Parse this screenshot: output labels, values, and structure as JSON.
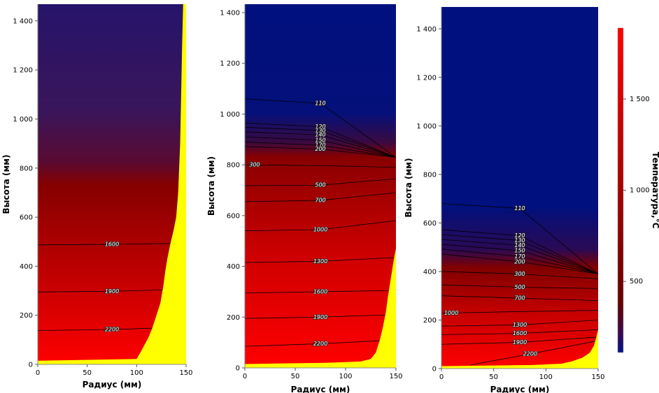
{
  "chart_data": [
    {
      "type": "contour",
      "xlabel": "Радиус (мм)",
      "ylabel": "Высота (мм)",
      "xlim": [
        0,
        150
      ],
      "ylim": [
        0,
        1468
      ],
      "xticks": [
        0,
        50,
        100,
        150
      ],
      "yticks": [
        0,
        200,
        400,
        600,
        800,
        {
          "value": 1000,
          "label": "1 000"
        },
        {
          "value": 1200,
          "label": "1 200"
        },
        {
          "value": 1400,
          "label": "1 400"
        }
      ],
      "contour_color": "#000000",
      "solid_color": "#ffff00",
      "solid_boundary": {
        "x": [
          0,
          100,
          104,
          108,
          112,
          116,
          120,
          124,
          127,
          129,
          131,
          134,
          137,
          140,
          142,
          143,
          144,
          145,
          146,
          147
        ],
        "y": [
          15,
          22,
          50,
          80,
          110,
          150,
          200,
          250,
          320,
          380,
          430,
          490,
          540,
          600,
          700,
          800,
          900,
          1100,
          1300,
          1468
        ]
      },
      "contours": [
        {
          "level": 1600,
          "x": [
            0,
            75,
            150
          ],
          "y": [
            487,
            489,
            494
          ]
        },
        {
          "level": 1900,
          "x": [
            0,
            75,
            150
          ],
          "y": [
            295,
            298,
            306
          ]
        },
        {
          "level": 2200,
          "x": [
            0,
            75,
            150
          ],
          "y": [
            138,
            142,
            152
          ]
        }
      ]
    },
    {
      "type": "contour",
      "xlabel": "Радиус (мм)",
      "ylabel": "Высота (мм)",
      "xlim": [
        0,
        150
      ],
      "ylim": [
        0,
        1433
      ],
      "xticks": [
        0,
        50,
        100,
        150
      ],
      "yticks": [
        0,
        200,
        400,
        600,
        800,
        {
          "value": 1000,
          "label": "1 000"
        },
        {
          "value": 1200,
          "label": "1 200"
        },
        {
          "value": 1400,
          "label": "1 400"
        }
      ],
      "contour_color": "#000000",
      "solid_color": "#ffff00",
      "solid_boundary": {
        "x": [
          0,
          80,
          115,
          125,
          130,
          134,
          137,
          140,
          142,
          144,
          146,
          148,
          150
        ],
        "y": [
          15,
          20,
          25,
          35,
          60,
          110,
          160,
          220,
          280,
          330,
          380,
          430,
          470
        ]
      },
      "contours": [
        {
          "level": 110,
          "x": [
            0,
            75,
            150
          ],
          "y": [
            1060,
            1042,
            830
          ]
        },
        {
          "level": 120,
          "x": [
            0,
            75,
            150
          ],
          "y": [
            965,
            950,
            830
          ]
        },
        {
          "level": 130,
          "x": [
            0,
            75,
            150
          ],
          "y": [
            948,
            935,
            830
          ]
        },
        {
          "level": 140,
          "x": [
            0,
            75,
            150
          ],
          "y": [
            930,
            918,
            830
          ]
        },
        {
          "level": 150,
          "x": [
            0,
            75,
            150
          ],
          "y": [
            910,
            897,
            830
          ]
        },
        {
          "level": 170,
          "x": [
            0,
            75,
            150
          ],
          "y": [
            890,
            877,
            830
          ]
        },
        {
          "level": 200,
          "x": [
            0,
            75,
            150
          ],
          "y": [
            872,
            862,
            830
          ]
        },
        {
          "level": 300,
          "x": [
            0,
            75,
            150
          ],
          "y": [
            800,
            797,
            790
          ]
        },
        {
          "level": 500,
          "x": [
            0,
            75,
            150
          ],
          "y": [
            718,
            720,
            745
          ]
        },
        {
          "level": 700,
          "x": [
            0,
            75,
            150
          ],
          "y": [
            655,
            660,
            690
          ]
        },
        {
          "level": 1000,
          "x": [
            0,
            75,
            150
          ],
          "y": [
            540,
            545,
            580
          ]
        },
        {
          "level": 1300,
          "x": [
            0,
            75,
            150
          ],
          "y": [
            415,
            420,
            435
          ]
        },
        {
          "level": 1600,
          "x": [
            0,
            75,
            150
          ],
          "y": [
            295,
            300,
            305
          ]
        },
        {
          "level": 1900,
          "x": [
            0,
            75,
            150
          ],
          "y": [
            195,
            200,
            210
          ]
        },
        {
          "level": 2200,
          "x": [
            0,
            75,
            150
          ],
          "y": [
            85,
            95,
            110
          ]
        }
      ]
    },
    {
      "type": "contour",
      "xlabel": "Радиус (мм)",
      "ylabel": "Высота (мм)",
      "xlim": [
        0,
        150
      ],
      "ylim": [
        0,
        1490
      ],
      "xticks": [
        0,
        50,
        100,
        150
      ],
      "yticks": [
        0,
        200,
        400,
        600,
        800,
        {
          "value": 1000,
          "label": "1 000"
        },
        {
          "value": 1200,
          "label": "1 200"
        },
        {
          "value": 1400,
          "label": "1 400"
        }
      ],
      "contour_color": "#000000",
      "solid_color": "#ffff00",
      "solid_boundary": {
        "x": [
          0,
          90,
          115,
          125,
          135,
          142,
          146,
          148,
          150
        ],
        "y": [
          10,
          15,
          20,
          30,
          45,
          65,
          95,
          125,
          160
        ]
      },
      "contours": [
        {
          "level": 110,
          "x": [
            0,
            75,
            150
          ],
          "y": [
            680,
            660,
            390
          ]
        },
        {
          "level": 120,
          "x": [
            0,
            75,
            150
          ],
          "y": [
            572,
            548,
            390
          ]
        },
        {
          "level": 130,
          "x": [
            0,
            75,
            150
          ],
          "y": [
            552,
            528,
            390
          ]
        },
        {
          "level": 140,
          "x": [
            0,
            75,
            150
          ],
          "y": [
            532,
            508,
            390
          ]
        },
        {
          "level": 150,
          "x": [
            0,
            75,
            150
          ],
          "y": [
            512,
            486,
            390
          ]
        },
        {
          "level": 170,
          "x": [
            0,
            75,
            150
          ],
          "y": [
            492,
            462,
            390
          ]
        },
        {
          "level": 200,
          "x": [
            0,
            75,
            150
          ],
          "y": [
            472,
            440,
            390
          ]
        },
        {
          "level": 300,
          "x": [
            0,
            75,
            150
          ],
          "y": [
            400,
            390,
            370
          ]
        },
        {
          "level": 500,
          "x": [
            0,
            75,
            150
          ],
          "y": [
            345,
            335,
            330
          ]
        },
        {
          "level": 700,
          "x": [
            0,
            75,
            150
          ],
          "y": [
            300,
            290,
            280
          ]
        },
        {
          "level": 1000,
          "x": [
            0,
            75,
            150
          ],
          "y": [
            228,
            235,
            240
          ]
        },
        {
          "level": 1300,
          "x": [
            0,
            75,
            150
          ],
          "y": [
            175,
            180,
            200
          ]
        },
        {
          "level": 1600,
          "x": [
            0,
            75,
            150
          ],
          "y": [
            140,
            145,
            160
          ]
        },
        {
          "level": 1900,
          "x": [
            0,
            75,
            150
          ],
          "y": [
            100,
            108,
            130
          ]
        },
        {
          "level": 2200,
          "x": [
            28,
            85,
            150
          ],
          "y": [
            15,
            60,
            115
          ]
        }
      ]
    },
    {
      "type": "colorbar",
      "label": "Температура,°C",
      "clim": [
        110,
        1890
      ],
      "ticks": [
        500,
        {
          "value": 1000,
          "label": "1 000"
        },
        {
          "value": 1500,
          "label": "1 500"
        }
      ]
    }
  ]
}
